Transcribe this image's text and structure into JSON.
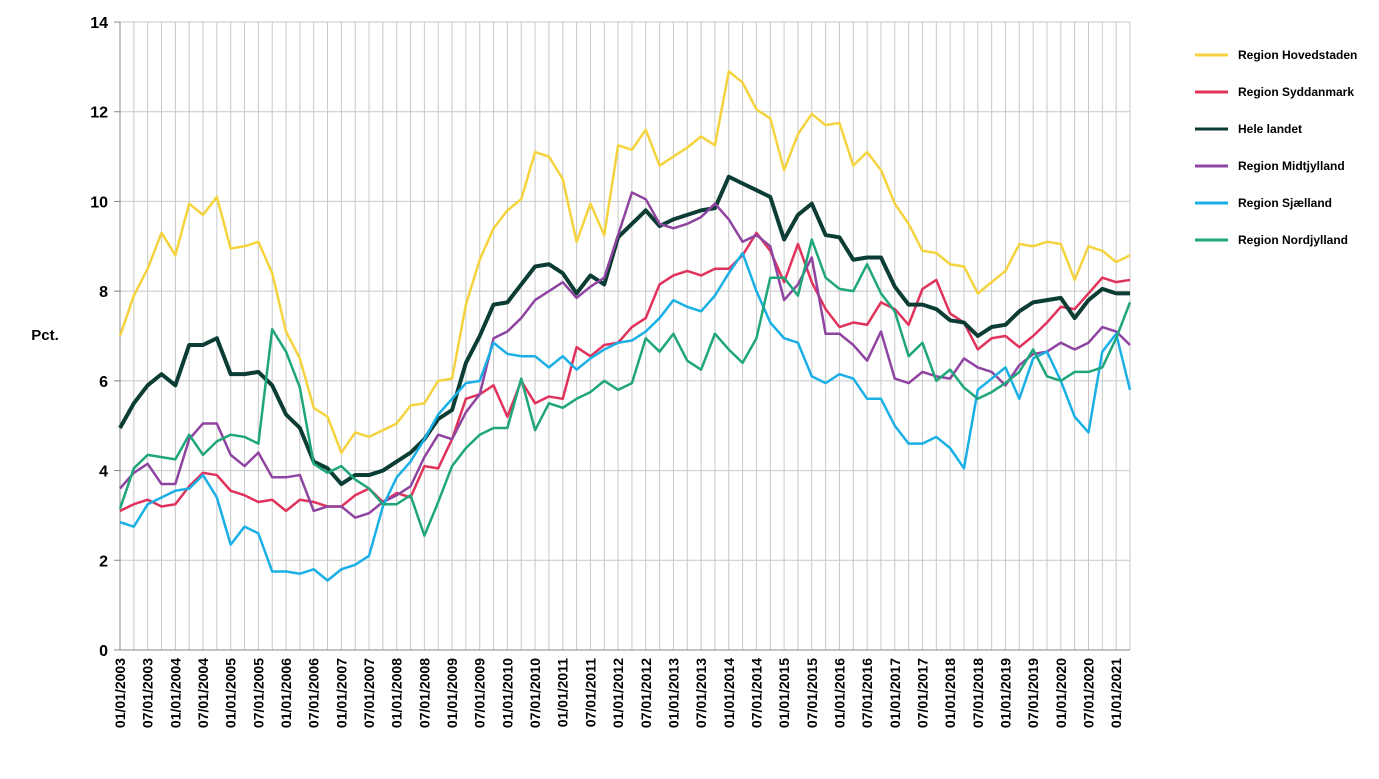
{
  "chart_data": {
    "type": "line",
    "ylabel": "Pct.",
    "categories": [
      "01/01/2003",
      null,
      "07/01/2003",
      null,
      "01/01/2004",
      null,
      "07/01/2004",
      null,
      "01/01/2005",
      null,
      "07/01/2005",
      null,
      "01/01/2006",
      null,
      "07/01/2006",
      null,
      "01/01/2007",
      null,
      "07/01/2007",
      null,
      "01/01/2008",
      null,
      "07/01/2008",
      null,
      "01/01/2009",
      null,
      "07/01/2009",
      null,
      "01/01/2010",
      null,
      "07/01/2010",
      null,
      "01/01/2011",
      null,
      "07/01/2011",
      null,
      "01/01/2012",
      null,
      "07/01/2012",
      null,
      "01/01/2013",
      null,
      "07/01/2013",
      null,
      "01/01/2014",
      null,
      "07/01/2014",
      null,
      "01/01/2015",
      null,
      "07/01/2015",
      null,
      "01/01/2016",
      null,
      "07/01/2016",
      null,
      "01/01/2017",
      null,
      "07/01/2017",
      null,
      "01/01/2018",
      null,
      "07/01/2018",
      null,
      "01/01/2019",
      null,
      "07/01/2019",
      null,
      "01/01/2020",
      null,
      "07/01/2020",
      null,
      "01/01/2021",
      null
    ],
    "series": [
      {
        "name": "Region Hovedstaden",
        "color": "#f5d33f",
        "values": [
          7.0,
          7.9,
          8.5,
          9.3,
          8.8,
          9.95,
          9.7,
          10.1,
          8.95,
          9.0,
          9.1,
          8.4,
          7.1,
          6.5,
          5.4,
          5.2,
          4.4,
          4.85,
          4.75,
          4.9,
          5.05,
          5.45,
          5.5,
          6.0,
          6.05,
          7.7,
          8.7,
          9.4,
          9.8,
          10.05,
          11.1,
          11.0,
          10.5,
          9.1,
          9.95,
          9.25,
          11.25,
          11.15,
          11.6,
          10.8,
          11.0,
          11.2,
          11.45,
          11.25,
          12.9,
          12.65,
          12.05,
          11.85,
          10.7,
          11.5,
          11.95,
          11.7,
          11.75,
          10.8,
          11.1,
          10.7,
          9.95,
          9.5,
          8.9,
          8.85,
          8.6,
          8.55,
          7.95,
          8.2,
          8.45,
          9.05,
          9.0,
          9.1,
          9.05,
          8.25,
          9.0,
          8.9,
          8.65,
          8.8
        ]
      },
      {
        "name": "Region Syddanmark",
        "color": "#e0325a",
        "values": [
          3.1,
          3.25,
          3.35,
          3.2,
          3.25,
          3.65,
          3.95,
          3.9,
          3.55,
          3.45,
          3.3,
          3.35,
          3.1,
          3.35,
          3.3,
          3.2,
          3.2,
          3.45,
          3.6,
          3.3,
          3.5,
          3.4,
          4.1,
          4.05,
          4.7,
          5.6,
          5.7,
          5.9,
          5.2,
          6.0,
          5.5,
          5.65,
          5.6,
          6.75,
          6.55,
          6.8,
          6.85,
          7.2,
          7.4,
          8.15,
          8.35,
          8.45,
          8.35,
          8.5,
          8.5,
          8.8,
          9.3,
          8.9,
          8.2,
          9.05,
          8.2,
          7.6,
          7.2,
          7.3,
          7.25,
          7.75,
          7.6,
          7.25,
          8.05,
          8.25,
          7.5,
          7.3,
          6.7,
          6.95,
          7.0,
          6.75,
          7.0,
          7.3,
          7.65,
          7.6,
          7.95,
          8.3,
          8.2,
          8.25
        ]
      },
      {
        "name": "Hele landet",
        "color": "#0b3d35",
        "width": 4,
        "values": [
          4.95,
          5.5,
          5.9,
          6.15,
          5.9,
          6.8,
          6.8,
          6.95,
          6.15,
          6.15,
          6.2,
          5.9,
          5.25,
          4.95,
          4.2,
          4.05,
          3.7,
          3.9,
          3.9,
          4.0,
          4.2,
          4.4,
          4.7,
          5.15,
          5.35,
          6.4,
          7.0,
          7.7,
          7.75,
          8.15,
          8.55,
          8.6,
          8.4,
          7.95,
          8.35,
          8.15,
          9.2,
          9.5,
          9.8,
          9.45,
          9.6,
          9.7,
          9.8,
          9.85,
          10.55,
          10.4,
          10.25,
          10.1,
          9.15,
          9.7,
          9.95,
          9.25,
          9.2,
          8.7,
          8.75,
          8.75,
          8.1,
          7.7,
          7.7,
          7.6,
          7.35,
          7.3,
          7.0,
          7.2,
          7.25,
          7.55,
          7.75,
          7.8,
          7.85,
          7.4,
          7.8,
          8.05,
          7.95,
          7.95
        ]
      },
      {
        "name": "Region Midtjylland",
        "color": "#8e44a0",
        "values": [
          3.6,
          3.95,
          4.15,
          3.7,
          3.7,
          4.7,
          5.05,
          5.05,
          4.35,
          4.1,
          4.4,
          3.85,
          3.85,
          3.9,
          3.1,
          3.2,
          3.2,
          2.95,
          3.05,
          3.3,
          3.45,
          3.65,
          4.3,
          4.8,
          4.7,
          5.3,
          5.7,
          6.95,
          7.1,
          7.4,
          7.8,
          8.0,
          8.2,
          7.85,
          8.1,
          8.3,
          9.25,
          10.2,
          10.05,
          9.5,
          9.4,
          9.5,
          9.65,
          9.95,
          9.6,
          9.1,
          9.25,
          9.0,
          7.8,
          8.15,
          8.75,
          7.05,
          7.05,
          6.8,
          6.45,
          7.1,
          6.05,
          5.95,
          6.2,
          6.1,
          6.05,
          6.5,
          6.3,
          6.2,
          5.9,
          6.35,
          6.6,
          6.65,
          6.85,
          6.7,
          6.85,
          7.2,
          7.1,
          6.8
        ]
      },
      {
        "name": "Region Sjælland",
        "color": "#1ab0e6",
        "values": [
          2.85,
          2.75,
          3.25,
          3.4,
          3.55,
          3.6,
          3.9,
          3.4,
          2.35,
          2.75,
          2.6,
          1.75,
          1.75,
          1.7,
          1.8,
          1.55,
          1.8,
          1.9,
          2.1,
          3.2,
          3.85,
          4.2,
          4.7,
          5.25,
          5.6,
          5.95,
          6.0,
          6.85,
          6.6,
          6.55,
          6.55,
          6.3,
          6.55,
          6.25,
          6.5,
          6.7,
          6.85,
          6.9,
          7.1,
          7.4,
          7.8,
          7.65,
          7.55,
          7.9,
          8.4,
          8.85,
          8.0,
          7.3,
          6.95,
          6.85,
          6.1,
          5.95,
          6.15,
          6.05,
          5.6,
          5.6,
          5.0,
          4.6,
          4.6,
          4.75,
          4.5,
          4.05,
          5.8,
          6.05,
          6.3,
          5.6,
          6.5,
          6.65,
          6.0,
          5.2,
          4.85,
          6.65,
          7.05,
          5.8
        ]
      },
      {
        "name": "Region Nordjylland",
        "color": "#1fa67a",
        "values": [
          3.15,
          4.05,
          4.35,
          4.3,
          4.25,
          4.8,
          4.35,
          4.65,
          4.8,
          4.75,
          4.6,
          7.15,
          6.65,
          5.85,
          4.15,
          3.95,
          4.1,
          3.8,
          3.6,
          3.25,
          3.25,
          3.45,
          2.55,
          3.3,
          4.1,
          4.5,
          4.8,
          4.95,
          4.95,
          6.05,
          4.9,
          5.5,
          5.4,
          5.6,
          5.75,
          6.0,
          5.8,
          5.95,
          6.95,
          6.65,
          7.05,
          6.45,
          6.25,
          7.05,
          6.7,
          6.4,
          6.95,
          8.3,
          8.3,
          7.9,
          9.15,
          8.3,
          8.05,
          8.0,
          8.6,
          7.95,
          7.55,
          6.55,
          6.85,
          6.0,
          6.25,
          5.85,
          5.6,
          5.75,
          5.95,
          6.2,
          6.7,
          6.1,
          6.0,
          6.2,
          6.2,
          6.3,
          6.95,
          7.75
        ]
      }
    ],
    "ylim": [
      0,
      14
    ],
    "yticks": [
      0,
      2,
      4,
      6,
      8,
      10,
      12,
      14
    ],
    "grid": true,
    "legend": "right"
  }
}
